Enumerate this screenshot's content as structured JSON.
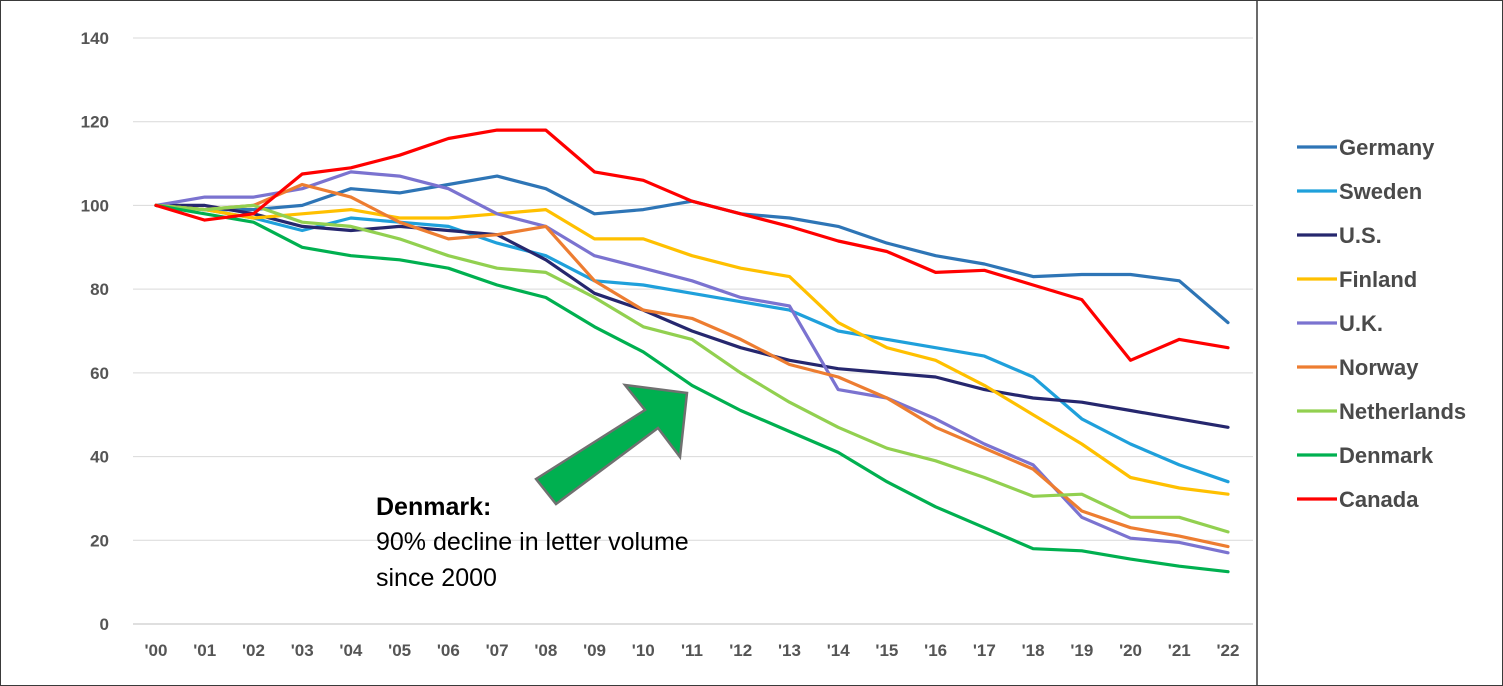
{
  "chart_data": {
    "type": "line",
    "x": [
      "'00",
      "'01",
      "'02",
      "'03",
      "'04",
      "'05",
      "'06",
      "'07",
      "'08",
      "'09",
      "'10",
      "'11",
      "'12",
      "'13",
      "'14",
      "'15",
      "'16",
      "'17",
      "'18",
      "'19",
      "'20",
      "'21",
      "'22"
    ],
    "ylim": [
      0,
      140
    ],
    "yticks": [
      0,
      20,
      40,
      60,
      80,
      100,
      120,
      140
    ],
    "grid": true,
    "legend_position": "right",
    "series": [
      {
        "name": "Germany",
        "color": "#2E75B6",
        "values": [
          100,
          99,
          99,
          100,
          104,
          103,
          105,
          107,
          104,
          98,
          99,
          101,
          98,
          97,
          95,
          91,
          88,
          86,
          83,
          83.5,
          83.5,
          82,
          72
        ]
      },
      {
        "name": "Sweden",
        "color": "#1FA0DB",
        "values": [
          100,
          99,
          97,
          94,
          97,
          96,
          95,
          91,
          88,
          82,
          81,
          79,
          77,
          75,
          70,
          68,
          66,
          64,
          59,
          49,
          43,
          38,
          34
        ]
      },
      {
        "name": "U.S.",
        "color": "#26276E",
        "values": [
          100,
          100,
          98,
          95,
          94,
          95,
          94,
          93,
          87,
          79,
          75,
          70,
          66,
          63,
          61,
          60,
          59,
          56,
          54,
          53,
          51,
          49,
          47
        ]
      },
      {
        "name": "Finland",
        "color": "#FFC000",
        "values": [
          100,
          99,
          97,
          98,
          99,
          97,
          97,
          98,
          99,
          92,
          92,
          88,
          85,
          83,
          72,
          66,
          63,
          57,
          50,
          43,
          35,
          32.5,
          31
        ]
      },
      {
        "name": "U.K.",
        "color": "#7B73D0",
        "values": [
          100,
          102,
          102,
          104,
          108,
          107,
          104,
          98,
          95,
          88,
          85,
          82,
          78,
          76,
          56,
          54,
          49,
          43,
          38,
          25.5,
          20.5,
          19.5,
          17
        ]
      },
      {
        "name": "Norway",
        "color": "#ED7D31",
        "values": [
          100,
          99,
          100,
          105,
          102,
          96,
          92,
          93,
          95,
          82,
          75,
          73,
          68,
          62,
          59,
          54,
          47,
          42,
          37,
          27,
          23,
          21,
          18.5
        ]
      },
      {
        "name": "Netherlands",
        "color": "#92D050",
        "values": [
          100,
          99,
          100,
          96,
          95,
          92,
          88,
          85,
          84,
          78,
          71,
          68,
          60,
          53,
          47,
          42,
          39,
          35,
          30.5,
          31,
          25.5,
          25.5,
          22
        ]
      },
      {
        "name": "Denmark",
        "color": "#00B050",
        "values": [
          100,
          98,
          96,
          90,
          88,
          87,
          85,
          81,
          78,
          71,
          65,
          57,
          51,
          46,
          41,
          34,
          28,
          23,
          18,
          17.5,
          15.5,
          13.8,
          12.5
        ]
      },
      {
        "name": "Canada",
        "color": "#FF0000",
        "values": [
          100,
          96.5,
          98,
          107.5,
          109,
          112,
          116,
          118,
          118,
          108,
          106,
          101,
          98,
          95,
          91.5,
          89,
          84,
          84.5,
          81,
          77.5,
          63,
          68,
          66
        ]
      }
    ],
    "annotations": [
      {
        "title": "Denmark:",
        "lines": [
          "90% decline in letter volume",
          "since 2000"
        ]
      }
    ]
  }
}
